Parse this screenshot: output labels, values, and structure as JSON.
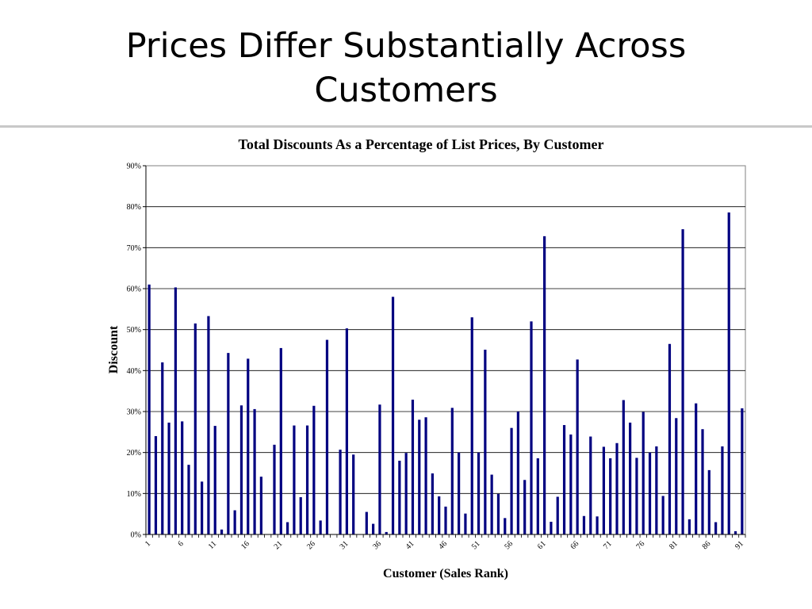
{
  "slide": {
    "title_line1": "Prices Differ Substantially Across",
    "title_line2": "Customers"
  },
  "chart_data": {
    "type": "bar",
    "title": "Total Discounts As a Percentage of List Prices, By Customer",
    "xlabel": "Customer (Sales Rank)",
    "ylabel": "Discount",
    "ylim": [
      0,
      90
    ],
    "y_ticks": [
      "0%",
      "10%",
      "20%",
      "30%",
      "40%",
      "50%",
      "60%",
      "70%",
      "80%",
      "90%"
    ],
    "x_tick_labels": [
      "1",
      "6",
      "11",
      "16",
      "21",
      "26",
      "31",
      "36",
      "41",
      "46",
      "51",
      "56",
      "61",
      "66",
      "71",
      "76",
      "81",
      "86",
      "91"
    ],
    "x_tick_every": 5,
    "grid": "horizontal",
    "bar_color": "#000080",
    "values": [
      61,
      24,
      42,
      27.3,
      60.3,
      27.6,
      17,
      51.5,
      12.9,
      53.3,
      26.5,
      1.2,
      44.3,
      5.9,
      31.5,
      42.9,
      30.6,
      14.1,
      0,
      21.9,
      45.5,
      3,
      26.6,
      9.1,
      26.6,
      31.4,
      3.4,
      47.5,
      0,
      20.7,
      50.3,
      19.5,
      0,
      5.5,
      2.6,
      31.7,
      0.6,
      58,
      18,
      19.9,
      32.9,
      28,
      28.6,
      14.9,
      9.3,
      6.8,
      30.9,
      20,
      5.1,
      53,
      20,
      45.1,
      14.6,
      9.9,
      4,
      26,
      30,
      13.3,
      52,
      18.6,
      72.8,
      3.1,
      9.2,
      26.7,
      24.4,
      42.7,
      4.5,
      23.9,
      4.4,
      21.4,
      18.6,
      22.3,
      32.8,
      27.3,
      18.7,
      29.9,
      20,
      21.5,
      9.4,
      46.5,
      28.4,
      74.5,
      3.7,
      32,
      25.7,
      15.7,
      3,
      21.5,
      78.6,
      0.8,
      30.8
    ]
  }
}
